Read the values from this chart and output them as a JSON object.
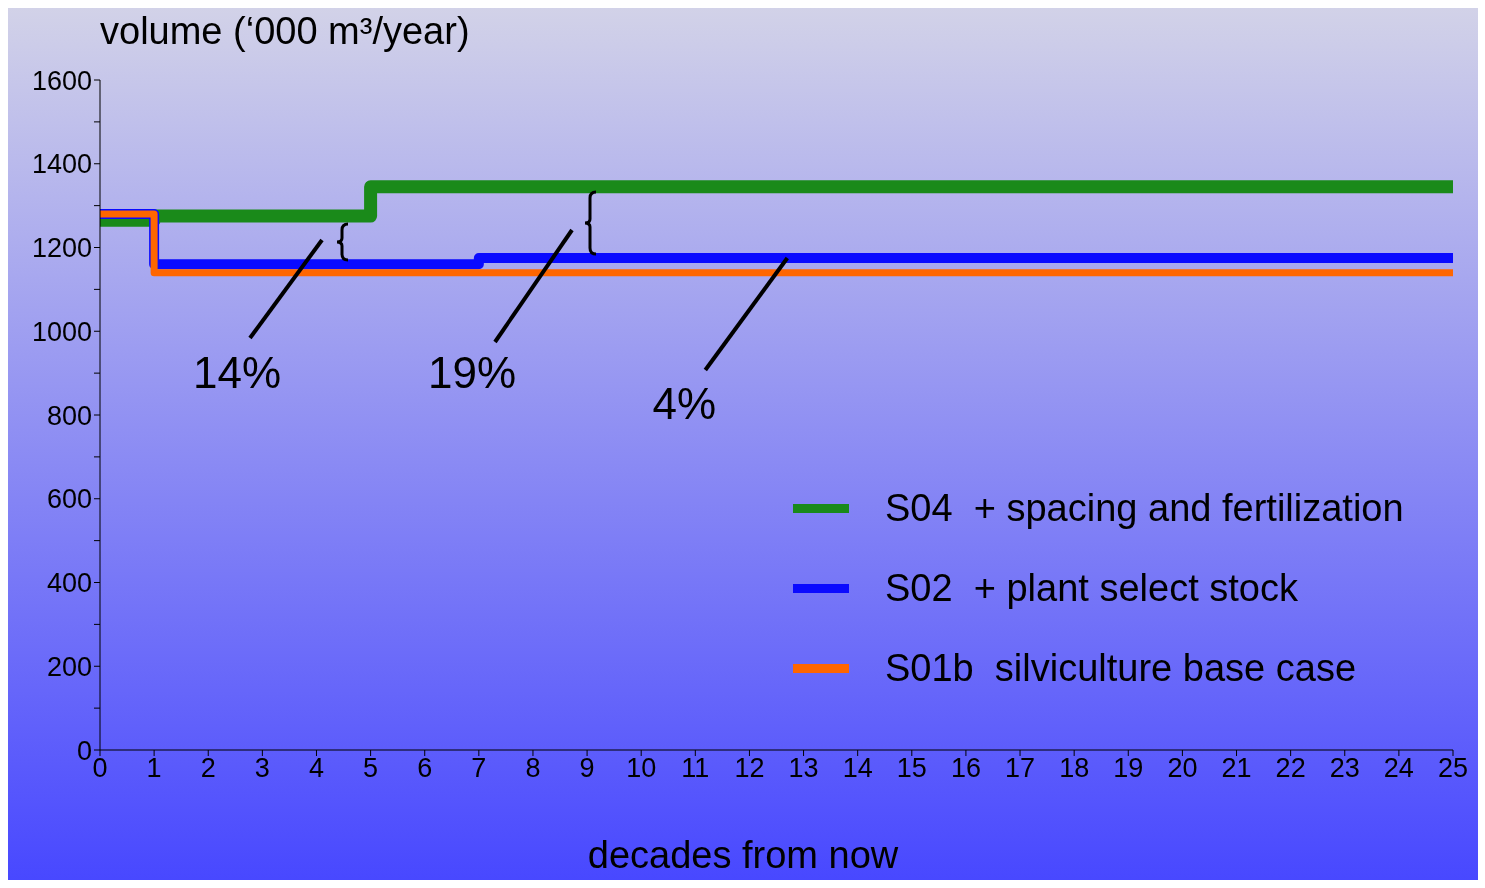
{
  "chart_data": {
    "type": "step",
    "ylabel": "volume (‘000 m³/year)",
    "xlabel": "decades from now",
    "series": [
      {
        "name": "S04  + spacing and fertilization",
        "color": "#1a8a1a",
        "x": [
          0,
          1,
          5,
          25
        ],
        "values": [
          1265,
          1275,
          1345,
          1345
        ]
      },
      {
        "name": "S02  + plant select stock",
        "color": "#0a0aff",
        "x": [
          0,
          1,
          7,
          25
        ],
        "values": [
          1280,
          1160,
          1175,
          1175
        ]
      },
      {
        "name": "S01b  silviculture base case",
        "color": "#ff6600",
        "x": [
          0,
          1,
          25
        ],
        "values": [
          1280,
          1140,
          1140
        ]
      }
    ],
    "xlim": [
      0,
      25
    ],
    "xticks": [
      0,
      1,
      2,
      3,
      4,
      5,
      6,
      7,
      8,
      9,
      10,
      11,
      12,
      13,
      14,
      15,
      16,
      17,
      18,
      19,
      20,
      21,
      22,
      23,
      24,
      25
    ],
    "ylim": [
      0,
      1600
    ],
    "yticks": [
      0,
      {
        "value": 100,
        "label": null
      },
      200,
      {
        "value": 300,
        "label": null
      },
      400,
      {
        "value": 500,
        "label": null
      },
      600,
      {
        "value": 700,
        "label": null
      },
      800,
      {
        "value": 900,
        "label": null
      },
      1000,
      {
        "value": 1100,
        "label": null
      },
      1200,
      {
        "value": 1300,
        "label": null
      },
      1400,
      {
        "value": 1500,
        "label": null
      },
      1600
    ],
    "annotations": [
      "14%",
      "19%",
      {
        "text": "4%",
        "x": 12.7,
        "y": 1175
      }
    ],
    "legend": "right",
    "marker": "none",
    "line_style": "solid"
  }
}
